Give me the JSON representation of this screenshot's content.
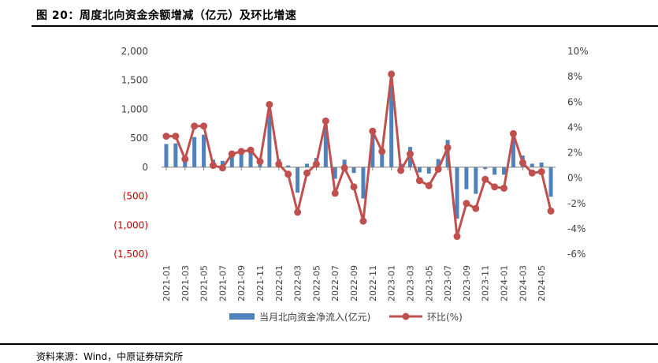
{
  "header": {
    "title": "图 20：周度北向资金余额增减（亿元）及环比增速"
  },
  "footer": {
    "source": "资料来源：Wind，中原证券研究所"
  },
  "colors": {
    "bar": "#4f81bd",
    "line": "#c0504d",
    "negative_tick": "#c00000",
    "axis": "#404040"
  },
  "chart_data": {
    "type": "bar",
    "title": "图 20：周度北向资金余额增减（亿元）及环比增速",
    "left_axis": {
      "range": [
        -1500,
        2000
      ],
      "ticks": [
        {
          "value": 2000,
          "label": "2,000"
        },
        {
          "value": 1500,
          "label": "1,500"
        },
        {
          "value": 1000,
          "label": "1,000"
        },
        {
          "value": 500,
          "label": "500"
        },
        {
          "value": 0,
          "label": "0"
        },
        {
          "value": -500,
          "label": "(500)"
        },
        {
          "value": -1000,
          "label": "(1,000)"
        },
        {
          "value": -1500,
          "label": "(1,500)"
        }
      ]
    },
    "right_axis": {
      "range": [
        -6,
        10
      ],
      "ticks": [
        {
          "value": 10,
          "label": "10%"
        },
        {
          "value": 8,
          "label": "8%"
        },
        {
          "value": 6,
          "label": "6%"
        },
        {
          "value": 4,
          "label": "4%"
        },
        {
          "value": 2,
          "label": "2%"
        },
        {
          "value": 0,
          "label": "0%"
        },
        {
          "value": -2,
          "label": "-2%"
        },
        {
          "value": -4,
          "label": "-4%"
        },
        {
          "value": -6,
          "label": "-6%"
        }
      ]
    },
    "x_tick_labels": [
      "2021-01",
      "2021-03",
      "2021-05",
      "2021-07",
      "2021-09",
      "2021-11",
      "2022-01",
      "2022-03",
      "2022-05",
      "2022-07",
      "2022-09",
      "2022-11",
      "2023-01",
      "2023-03",
      "2023-05",
      "2023-07",
      "2023-09",
      "2023-11",
      "2024-01",
      "2024-03",
      "2024-05"
    ],
    "x_tick_every": 2,
    "categories": [
      "2021-01",
      "2021-02",
      "2021-03",
      "2021-04",
      "2021-05",
      "2021-06",
      "2021-07",
      "2021-08",
      "2021-09",
      "2021-10",
      "2021-11",
      "2021-12",
      "2022-01",
      "2022-02",
      "2022-03",
      "2022-04",
      "2022-05",
      "2022-06",
      "2022-07",
      "2022-08",
      "2022-09",
      "2022-10",
      "2022-11",
      "2022-12",
      "2023-01",
      "2023-02",
      "2023-03",
      "2023-04",
      "2023-05",
      "2023-06",
      "2023-07",
      "2023-08",
      "2023-09",
      "2023-10",
      "2023-11",
      "2023-12",
      "2024-01",
      "2024-02",
      "2024-03",
      "2024-04",
      "2024-05",
      "2024-06"
    ],
    "series": [
      {
        "name": "当月北向资金净流入(亿元)",
        "type": "bar",
        "axis": "left",
        "values": [
          400,
          410,
          170,
          520,
          560,
          130,
          110,
          180,
          290,
          320,
          150,
          930,
          140,
          30,
          -440,
          60,
          160,
          730,
          -200,
          130,
          -100,
          -540,
          590,
          320,
          1400,
          60,
          350,
          -90,
          -110,
          140,
          470,
          -890,
          -380,
          -460,
          -30,
          -130,
          -130,
          500,
          200,
          60,
          80,
          -510
        ]
      },
      {
        "name": "环比(%)",
        "type": "line",
        "axis": "right",
        "values": [
          3.3,
          3.3,
          1.5,
          4.1,
          4.1,
          1.0,
          0.8,
          1.9,
          2.1,
          2.2,
          1.3,
          5.8,
          1.1,
          0.3,
          -2.7,
          0.4,
          1.1,
          4.5,
          -1.2,
          0.8,
          -0.7,
          -3.4,
          3.7,
          2.1,
          8.2,
          0.6,
          1.9,
          -0.2,
          -0.6,
          0.7,
          2.4,
          -4.6,
          -2.0,
          -2.4,
          -0.1,
          -0.7,
          -0.8,
          3.5,
          1.2,
          0.4,
          0.5,
          -2.6
        ]
      }
    ],
    "legend": {
      "position": "bottom",
      "entries": [
        "当月北向资金净流入(亿元)",
        "环比(%)"
      ]
    },
    "grid": false
  }
}
